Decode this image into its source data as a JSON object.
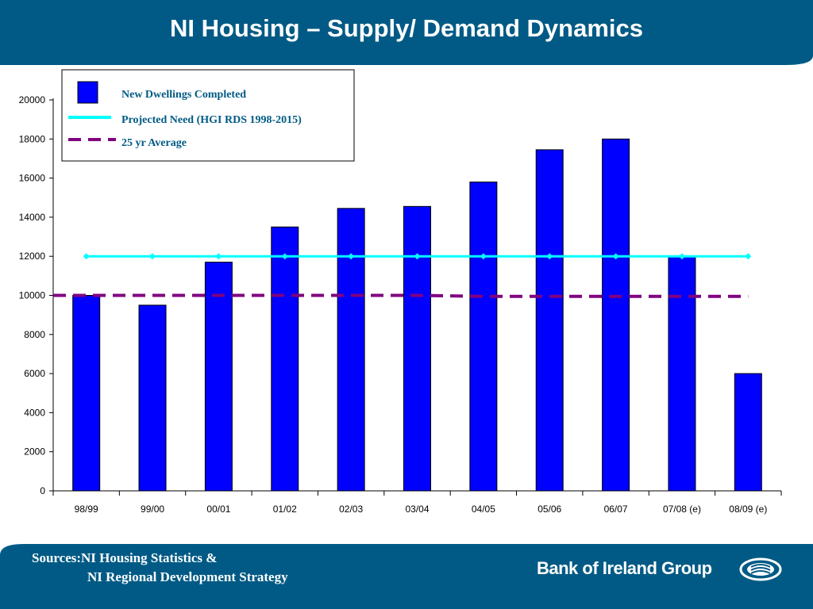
{
  "slide": {
    "title": "NI Housing – Supply/ Demand Dynamics",
    "sources_line1": "Sources:NI Housing Statistics &",
    "sources_line2": "NI Regional Development Strategy",
    "brand": "Bank of Ireland Group",
    "colors": {
      "band": "#005a85",
      "bar": "#0000ff",
      "projected": "#00ffff",
      "average": "#800080"
    }
  },
  "chart_data": {
    "type": "bar",
    "categories": [
      "98/99",
      "99/00",
      "00/01",
      "01/02",
      "02/03",
      "03/04",
      "04/05",
      "05/06",
      "06/07",
      "07/08 (e)",
      "08/09 (e)"
    ],
    "series": [
      {
        "name": "New Dwellings Completed",
        "type": "bar",
        "values": [
          10000,
          9500,
          11700,
          13500,
          14450,
          14550,
          15800,
          17450,
          18000,
          12000,
          6000
        ]
      },
      {
        "name": "Projected Need (HGI RDS 1998-2015)",
        "type": "line",
        "values": [
          12000,
          12000,
          12000,
          12000,
          12000,
          12000,
          12000,
          12000,
          12000,
          12000,
          12000
        ]
      },
      {
        "name": "25 yr Average",
        "type": "line",
        "values": [
          10000,
          10000,
          10000,
          10000,
          10000,
          10000,
          9950,
          9950,
          9950,
          9950,
          9950
        ]
      }
    ],
    "ylim": [
      0,
      20000
    ],
    "yticks": [
      "0",
      "2000",
      "4000",
      "6000",
      "8000",
      "10000",
      "12000",
      "14000",
      "16000",
      "18000",
      "20000"
    ],
    "legend": "top-left",
    "grid": false
  }
}
